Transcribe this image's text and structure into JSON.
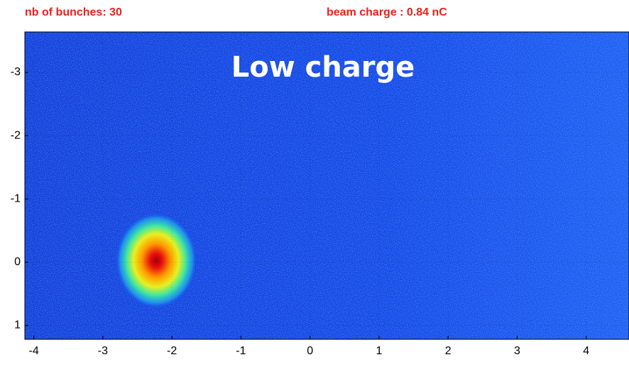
{
  "chart_data": {
    "type": "image",
    "subtitles": [
      "nb of bunches: 30",
      "beam charge : 0.84 nC"
    ],
    "annotation": "Low charge",
    "xlim": [
      -4.13,
      4.62
    ],
    "xticks": [
      -4,
      -3,
      -2,
      -1,
      0,
      1,
      2,
      3,
      4
    ],
    "ylim": [
      1.22,
      -3.64
    ],
    "yticks": [
      -3,
      -2,
      -1,
      0,
      1
    ],
    "grid": true
  }
}
